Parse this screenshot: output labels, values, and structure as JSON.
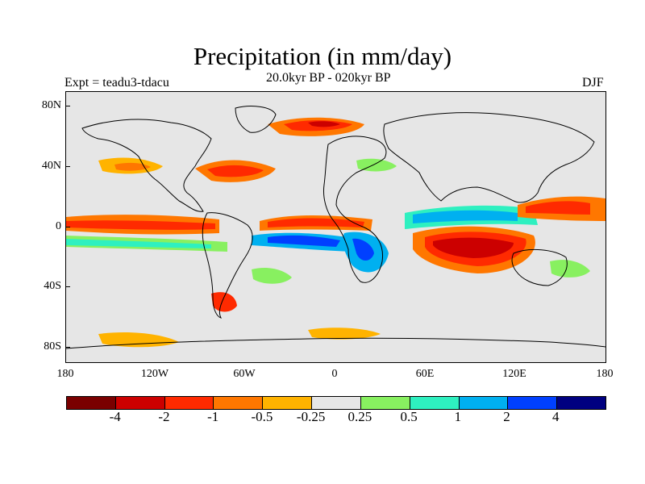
{
  "title": "Precipitation (in mm/day)",
  "subtitle": "20.0kyr BP - 020kyr BP",
  "left_label": "Expt = teadu3-tdacu",
  "right_label": "DJF",
  "lat_labels": [
    "80N",
    "40N",
    "0",
    "40S",
    "80S"
  ],
  "lon_labels": [
    "180",
    "120W",
    "60W",
    "0",
    "60E",
    "120E",
    "180"
  ],
  "colorbar": {
    "colors": [
      "#7a0000",
      "#cc0000",
      "#ff2a00",
      "#ff7700",
      "#ffb300",
      "#e6e6e6",
      "#88f060",
      "#2ef0c0",
      "#00b0f0",
      "#0040ff",
      "#000080"
    ],
    "labels": [
      "-4",
      "-2",
      "-1",
      "-0.5",
      "-0.25",
      "0.25",
      "0.5",
      "1",
      "2",
      "4"
    ]
  },
  "map_colors": {
    "background": "#e6e6e6",
    "coast": "#000000"
  }
}
